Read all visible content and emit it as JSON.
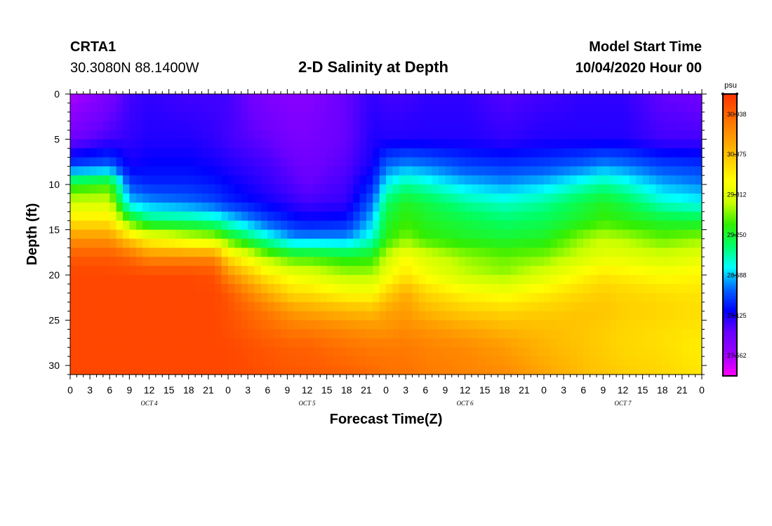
{
  "header": {
    "station_id": "CRTA1",
    "station_coords": "30.3080N 88.1400W",
    "title": "2-D Salinity at Depth",
    "start_label": "Model Start Time",
    "start_time": "10/04/2020 Hour 00"
  },
  "chart_data": {
    "type": "heatmap",
    "title": "2-D Salinity at Depth",
    "xlabel": "Forecast Time(Z)",
    "ylabel": "Depth (ft)",
    "x_range_hours": [
      0,
      96
    ],
    "x_tick_labels": [
      "0",
      "3",
      "6",
      "9",
      "12",
      "15",
      "18",
      "21",
      "0",
      "3",
      "6",
      "9",
      "12",
      "15",
      "18",
      "21",
      "0",
      "3",
      "6",
      "9",
      "12",
      "15",
      "18",
      "21",
      "0",
      "3",
      "6",
      "9",
      "12",
      "15",
      "18",
      "21",
      "0"
    ],
    "day_labels": [
      "OCT 4",
      "OCT 5",
      "OCT 6",
      "OCT 7"
    ],
    "y_range": [
      0,
      31
    ],
    "y_ticks": [
      0,
      5,
      10,
      15,
      20,
      25,
      30
    ],
    "y_inverted": true,
    "colorbar": {
      "unit": "psu",
      "range": [
        27.28,
        31.22
      ],
      "tick_labels": [
        "30.938",
        "30.375",
        "29.812",
        "29.250",
        "28.688",
        "28.125",
        "27.562"
      ],
      "colors": [
        "#ff00ff",
        "#9b00ff",
        "#6a00ff",
        "#0000ff",
        "#0066ff",
        "#00ffff",
        "#00ff66",
        "#33ee00",
        "#ccff00",
        "#ffff00",
        "#ffcc00",
        "#ff9900",
        "#ff6600",
        "#ff3300"
      ]
    },
    "field": {
      "depths_ft": [
        0,
        5,
        8,
        10,
        12,
        14,
        16,
        18,
        20,
        22,
        24,
        26,
        28,
        31
      ],
      "hours": [
        0,
        6,
        9,
        12,
        18,
        22,
        24,
        30,
        34,
        36,
        42,
        46,
        48,
        51,
        54,
        60,
        66,
        72,
        78,
        81,
        84,
        90,
        96
      ],
      "values": [
        [
          27.5,
          27.8,
          28.0,
          28.05,
          28.0,
          28.0,
          28.0,
          27.75,
          27.7,
          27.7,
          27.9,
          28.05,
          28.0,
          28.0,
          28.05,
          28.05,
          27.95,
          28.0,
          28.05,
          28.05,
          28.05,
          27.9,
          27.85
        ],
        [
          27.85,
          28.0,
          28.05,
          28.1,
          28.1,
          28.05,
          28.0,
          27.9,
          27.8,
          27.8,
          27.9,
          28.1,
          28.1,
          28.1,
          28.1,
          28.1,
          28.05,
          28.1,
          28.1,
          28.1,
          28.1,
          28.0,
          28.0
        ],
        [
          28.4,
          28.5,
          28.15,
          28.2,
          28.2,
          28.15,
          28.1,
          28.0,
          27.9,
          27.85,
          27.95,
          28.15,
          28.5,
          28.6,
          28.55,
          28.4,
          28.35,
          28.4,
          28.5,
          28.6,
          28.55,
          28.4,
          28.35
        ],
        [
          29.3,
          29.4,
          28.4,
          28.3,
          28.3,
          28.25,
          28.2,
          28.05,
          27.95,
          27.9,
          28.0,
          28.3,
          28.8,
          29.0,
          28.9,
          28.7,
          28.6,
          28.7,
          28.9,
          29.0,
          28.9,
          28.65,
          28.55
        ],
        [
          29.75,
          29.75,
          28.7,
          28.6,
          28.5,
          28.4,
          28.3,
          28.15,
          28.05,
          28.0,
          28.05,
          28.5,
          29.1,
          29.3,
          29.2,
          29.0,
          28.9,
          29.0,
          29.2,
          29.3,
          29.2,
          28.9,
          28.8
        ],
        [
          30.15,
          30.15,
          29.4,
          29.1,
          29.05,
          28.95,
          28.8,
          28.4,
          28.25,
          28.2,
          28.25,
          28.7,
          29.25,
          29.4,
          29.3,
          29.2,
          29.1,
          29.15,
          29.3,
          29.4,
          29.35,
          29.25,
          29.2
        ],
        [
          30.65,
          30.65,
          30.3,
          30.0,
          29.8,
          29.7,
          29.4,
          28.9,
          28.6,
          28.6,
          28.6,
          28.9,
          29.35,
          29.55,
          29.4,
          29.3,
          29.25,
          29.3,
          29.6,
          29.7,
          29.65,
          29.5,
          29.6
        ],
        [
          31.0,
          31.0,
          30.9,
          30.7,
          30.7,
          30.7,
          30.2,
          29.6,
          29.4,
          29.4,
          29.3,
          29.35,
          29.7,
          30.0,
          29.8,
          29.6,
          29.5,
          29.55,
          29.75,
          29.85,
          29.85,
          29.75,
          29.85
        ],
        [
          31.1,
          31.1,
          31.1,
          31.1,
          31.1,
          31.05,
          30.7,
          30.1,
          29.9,
          29.85,
          29.65,
          29.65,
          29.9,
          30.15,
          29.95,
          29.7,
          29.6,
          29.8,
          30.05,
          30.15,
          30.1,
          30.0,
          30.05
        ],
        [
          31.1,
          31.1,
          31.1,
          31.1,
          31.1,
          31.1,
          31.0,
          30.5,
          30.2,
          30.2,
          30.0,
          30.0,
          30.25,
          30.5,
          30.25,
          30.05,
          29.95,
          30.1,
          30.25,
          30.3,
          30.25,
          30.2,
          30.15
        ],
        [
          31.1,
          31.1,
          31.1,
          31.1,
          31.1,
          31.1,
          31.05,
          30.8,
          30.6,
          30.55,
          30.45,
          30.4,
          30.55,
          30.6,
          30.45,
          30.3,
          30.25,
          30.3,
          30.35,
          30.35,
          30.3,
          30.25,
          30.2
        ],
        [
          31.1,
          31.1,
          31.1,
          31.1,
          31.1,
          31.1,
          31.05,
          30.9,
          30.8,
          30.8,
          30.7,
          30.65,
          30.65,
          30.7,
          30.65,
          30.55,
          30.45,
          30.4,
          30.35,
          30.3,
          30.25,
          30.2,
          30.15
        ],
        [
          31.1,
          31.1,
          31.1,
          31.1,
          31.1,
          31.1,
          31.1,
          31.0,
          30.95,
          30.95,
          30.85,
          30.8,
          30.8,
          30.8,
          30.75,
          30.7,
          30.6,
          30.45,
          30.35,
          30.3,
          30.25,
          30.2,
          30.1
        ],
        [
          31.1,
          31.1,
          31.1,
          31.1,
          31.1,
          31.1,
          31.1,
          31.05,
          31.0,
          31.0,
          30.95,
          30.9,
          30.85,
          30.85,
          30.8,
          30.75,
          30.7,
          30.55,
          30.4,
          30.35,
          30.3,
          30.25,
          30.15
        ]
      ]
    }
  }
}
